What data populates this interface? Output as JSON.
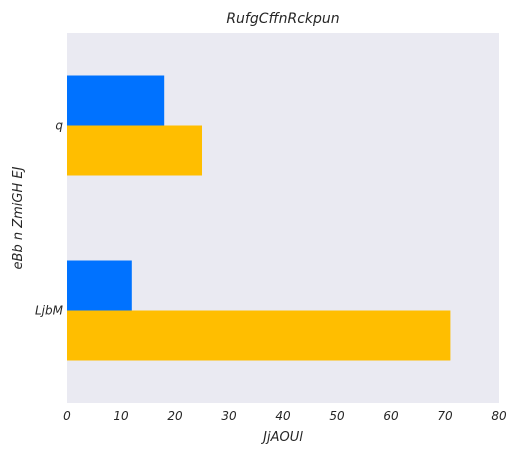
{
  "chart_data": {
    "type": "bar",
    "orientation": "horizontal",
    "title": "RufgCffnRckpun",
    "xlabel": "JjAOUl",
    "ylabel": "eBb n ZmiGH EJ",
    "categories": [
      "q",
      "LjbM"
    ],
    "series": [
      {
        "values": [
          18,
          12
        ],
        "color": "#0072ff"
      },
      {
        "values": [
          25,
          71
        ],
        "color": "#ffbe00"
      }
    ],
    "xlim": [
      0,
      80
    ],
    "xticks": [
      "0",
      "10",
      "20",
      "30",
      "40",
      "50",
      "60",
      "70",
      "80"
    ],
    "grid": false,
    "background": "#eaeaf2"
  }
}
